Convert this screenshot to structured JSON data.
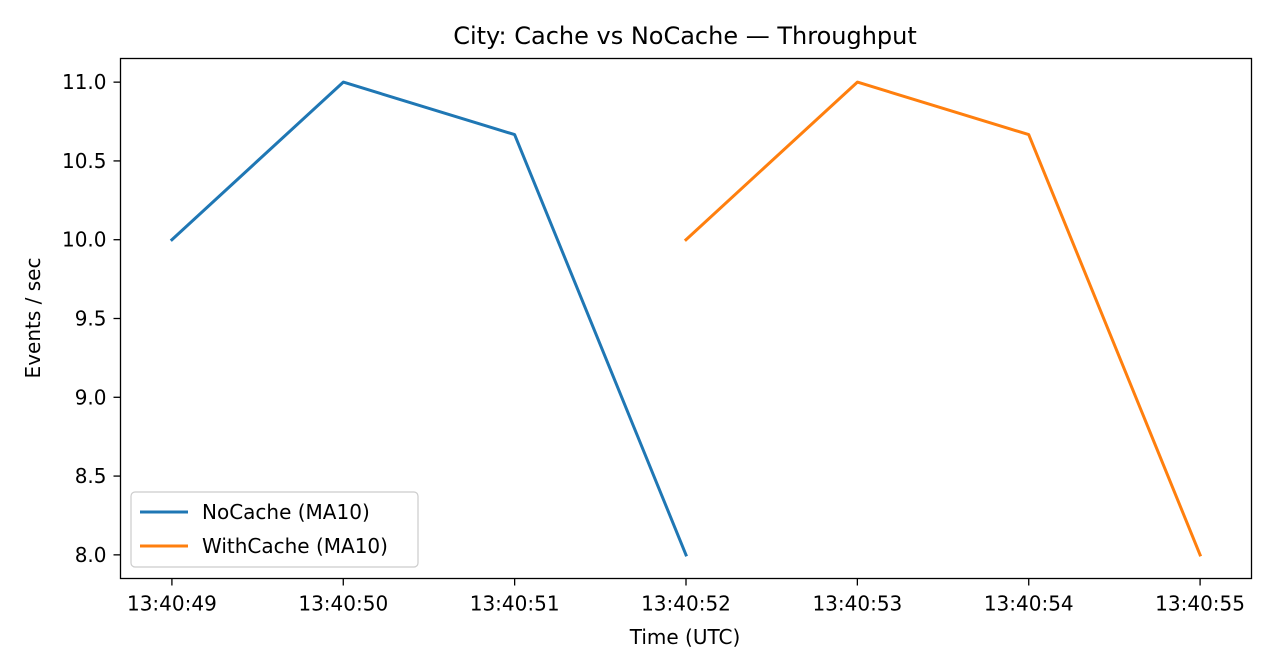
{
  "chart_data": {
    "type": "line",
    "title": "City: Cache vs NoCache — Throughput",
    "xlabel": "Time (UTC)",
    "ylabel": "Events / sec",
    "x_ticks": [
      "13:40:49",
      "13:40:50",
      "13:40:51",
      "13:40:52",
      "13:40:53",
      "13:40:54",
      "13:40:55"
    ],
    "y_ticks": [
      "8.0",
      "8.5",
      "9.0",
      "9.5",
      "10.0",
      "10.5",
      "11.0"
    ],
    "xlim": [
      "13:40:48.7",
      "13:40:55.3"
    ],
    "ylim": [
      7.85,
      11.15
    ],
    "grid": false,
    "legend_position": "lower-left",
    "series": [
      {
        "name": "NoCache (MA10)",
        "color": "#1f77b4",
        "x": [
          "13:40:49",
          "13:40:50",
          "13:40:51",
          "13:40:52"
        ],
        "y": [
          10.0,
          11.0,
          10.667,
          8.0
        ]
      },
      {
        "name": "WithCache (MA10)",
        "color": "#ff7f0e",
        "x": [
          "13:40:52",
          "13:40:53",
          "13:40:54",
          "13:40:55"
        ],
        "y": [
          10.0,
          11.0,
          10.667,
          8.0
        ]
      }
    ]
  }
}
